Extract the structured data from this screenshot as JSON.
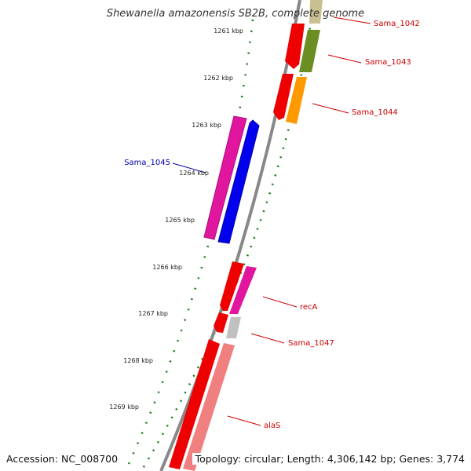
{
  "title": "Shewanella amazonensis SB2B, complete genome",
  "accession_text": "Accession: NC_008700",
  "topology_text": "Topology: circular; Length: 4,306,142 bp; Genes: 3,774",
  "colors": {
    "backbone": "#888888",
    "forward_label": "#cc0000",
    "reverse_label": "#0000aa",
    "tick": "#1a7a1a"
  },
  "ticks": [
    {
      "label": "1261 kbp"
    },
    {
      "label": "1262 kbp"
    },
    {
      "label": "1263 kbp"
    },
    {
      "label": "1264 kbp"
    },
    {
      "label": "1265 kbp"
    },
    {
      "label": "1266 kbp"
    },
    {
      "label": "1267 kbp"
    },
    {
      "label": "1268 kbp"
    },
    {
      "label": "1269 kbp"
    }
  ],
  "gene_labels": [
    {
      "text": "Sama_1042",
      "strand": "forward"
    },
    {
      "text": "Sama_1043",
      "strand": "forward"
    },
    {
      "text": "Sama_1044",
      "strand": "forward"
    },
    {
      "text": "Sama_1045",
      "strand": "reverse"
    },
    {
      "text": "recA",
      "strand": "forward"
    },
    {
      "text": "Sama_1047",
      "strand": "forward"
    },
    {
      "text": "alaS",
      "strand": "forward"
    }
  ]
}
